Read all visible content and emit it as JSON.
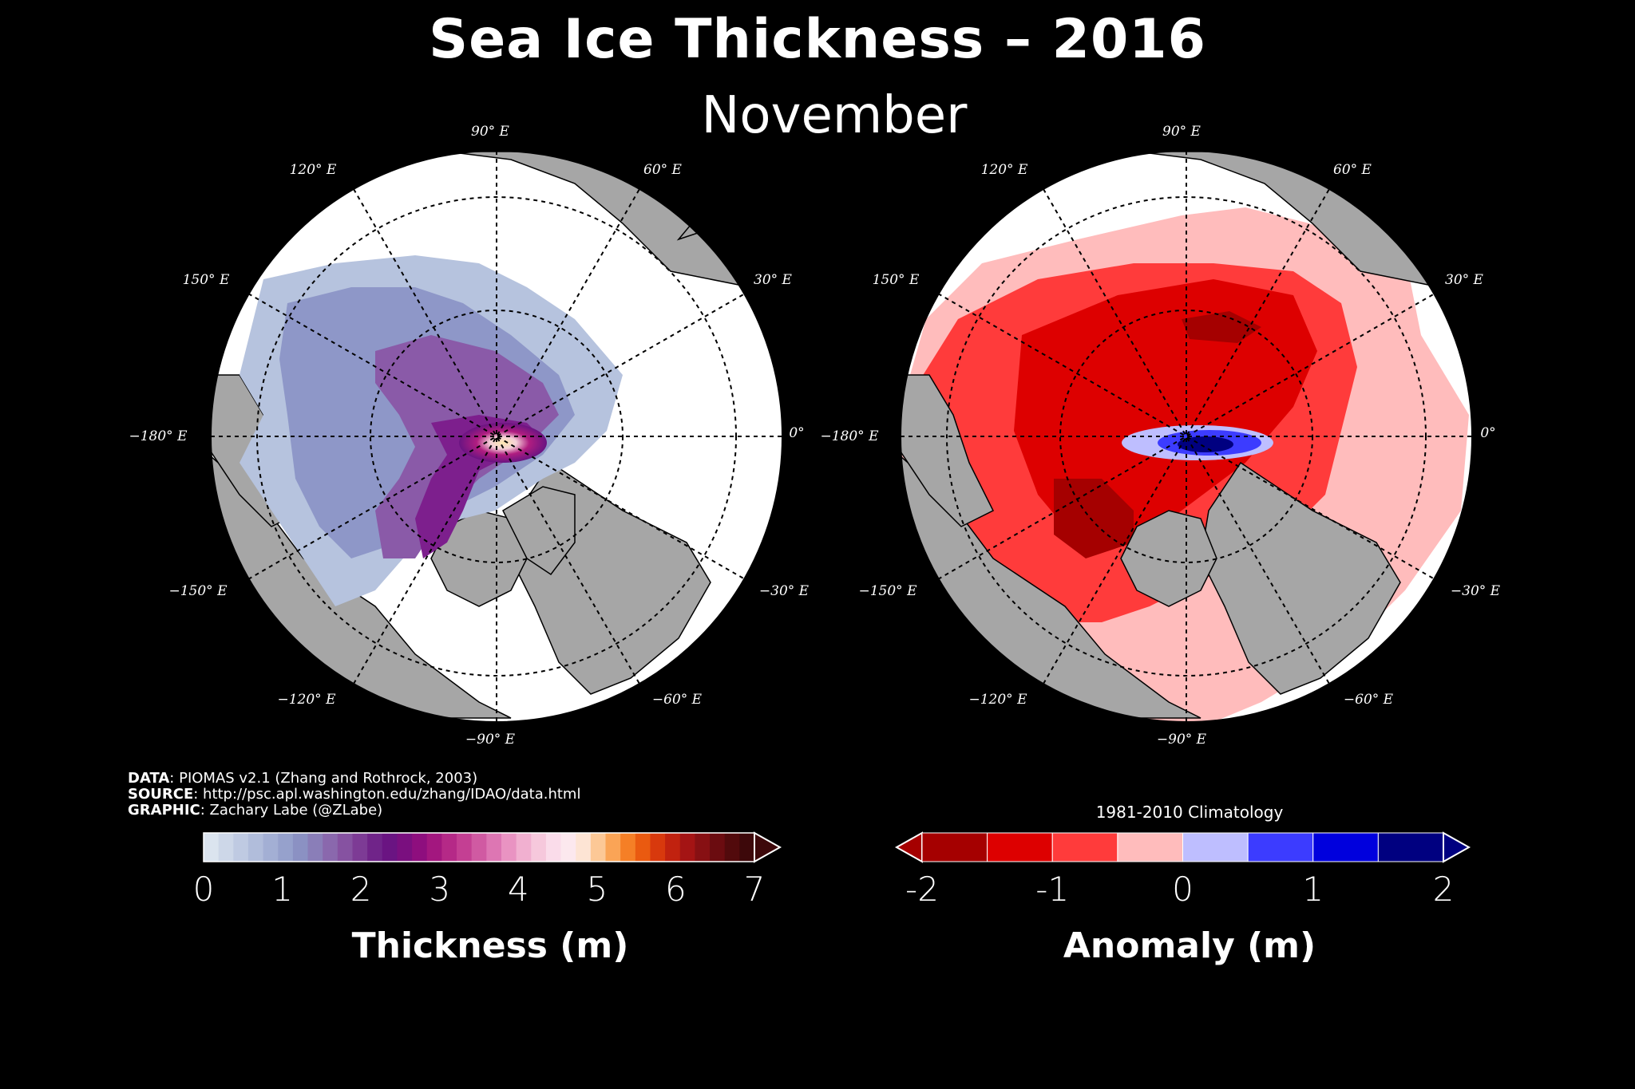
{
  "title": "Sea Ice Thickness – 2016",
  "subtitle": "November",
  "credits": {
    "data_label": "DATA",
    "data_text": ": PIOMAS v2.1 (Zhang and Rothrock, 2003)",
    "source_label": "SOURCE",
    "source_text": ": http://psc.apl.washington.edu/zhang/IDAO/data.html",
    "graphic_label": "GRAPHIC",
    "graphic_text": ": Zachary Labe (@ZLabe)"
  },
  "longitude_labels": [
    "90° E",
    "120° E",
    "60° E",
    "150° E",
    "30° E",
    "−180° E",
    "0°",
    "−150° E",
    "−30° E",
    "−120° E",
    "−60° E",
    "−90° E"
  ],
  "thickness_colorbar": {
    "title": "Thickness (m)",
    "ticks": [
      "0",
      "1",
      "2",
      "3",
      "4",
      "5",
      "6",
      "7"
    ],
    "colors": [
      "#dbe4ef",
      "#cdd7e8",
      "#bfcae2",
      "#b1bddb",
      "#a3afd4",
      "#96a1cc",
      "#8b91c3",
      "#8a7eb8",
      "#8a68ad",
      "#8652a1",
      "#7d3b95",
      "#702489",
      "#6a1482",
      "#7a0f7f",
      "#8e0e7e",
      "#a3177f",
      "#b52987",
      "#c43f93",
      "#d05aa2",
      "#dd76b3",
      "#e993c2",
      "#f1b0d0",
      "#f6c8dc",
      "#fadcea",
      "#fce8ee",
      "#fde4d4",
      "#fcc896",
      "#faa456",
      "#f57f26",
      "#ea5a10",
      "#d8390d",
      "#c1220f",
      "#a41414",
      "#871013",
      "#6b0c10",
      "#520a0c",
      "#3d080a"
    ],
    "extend": "max"
  },
  "anomaly_colorbar": {
    "title": "Anomaly (m)",
    "subtitle": "1981-2010 Climatology",
    "ticks": [
      "-2",
      "-1",
      "0",
      "1",
      "2"
    ],
    "colors": [
      "#a50000",
      "#dd0000",
      "#ff3b3b",
      "#ffbcbc",
      "#bebeff",
      "#3c3cff",
      "#0000dd",
      "#000080"
    ],
    "extend": "both"
  },
  "colors": {
    "background": "#000000",
    "land": "#a6a6a6",
    "open_water": "#ffffff"
  }
}
